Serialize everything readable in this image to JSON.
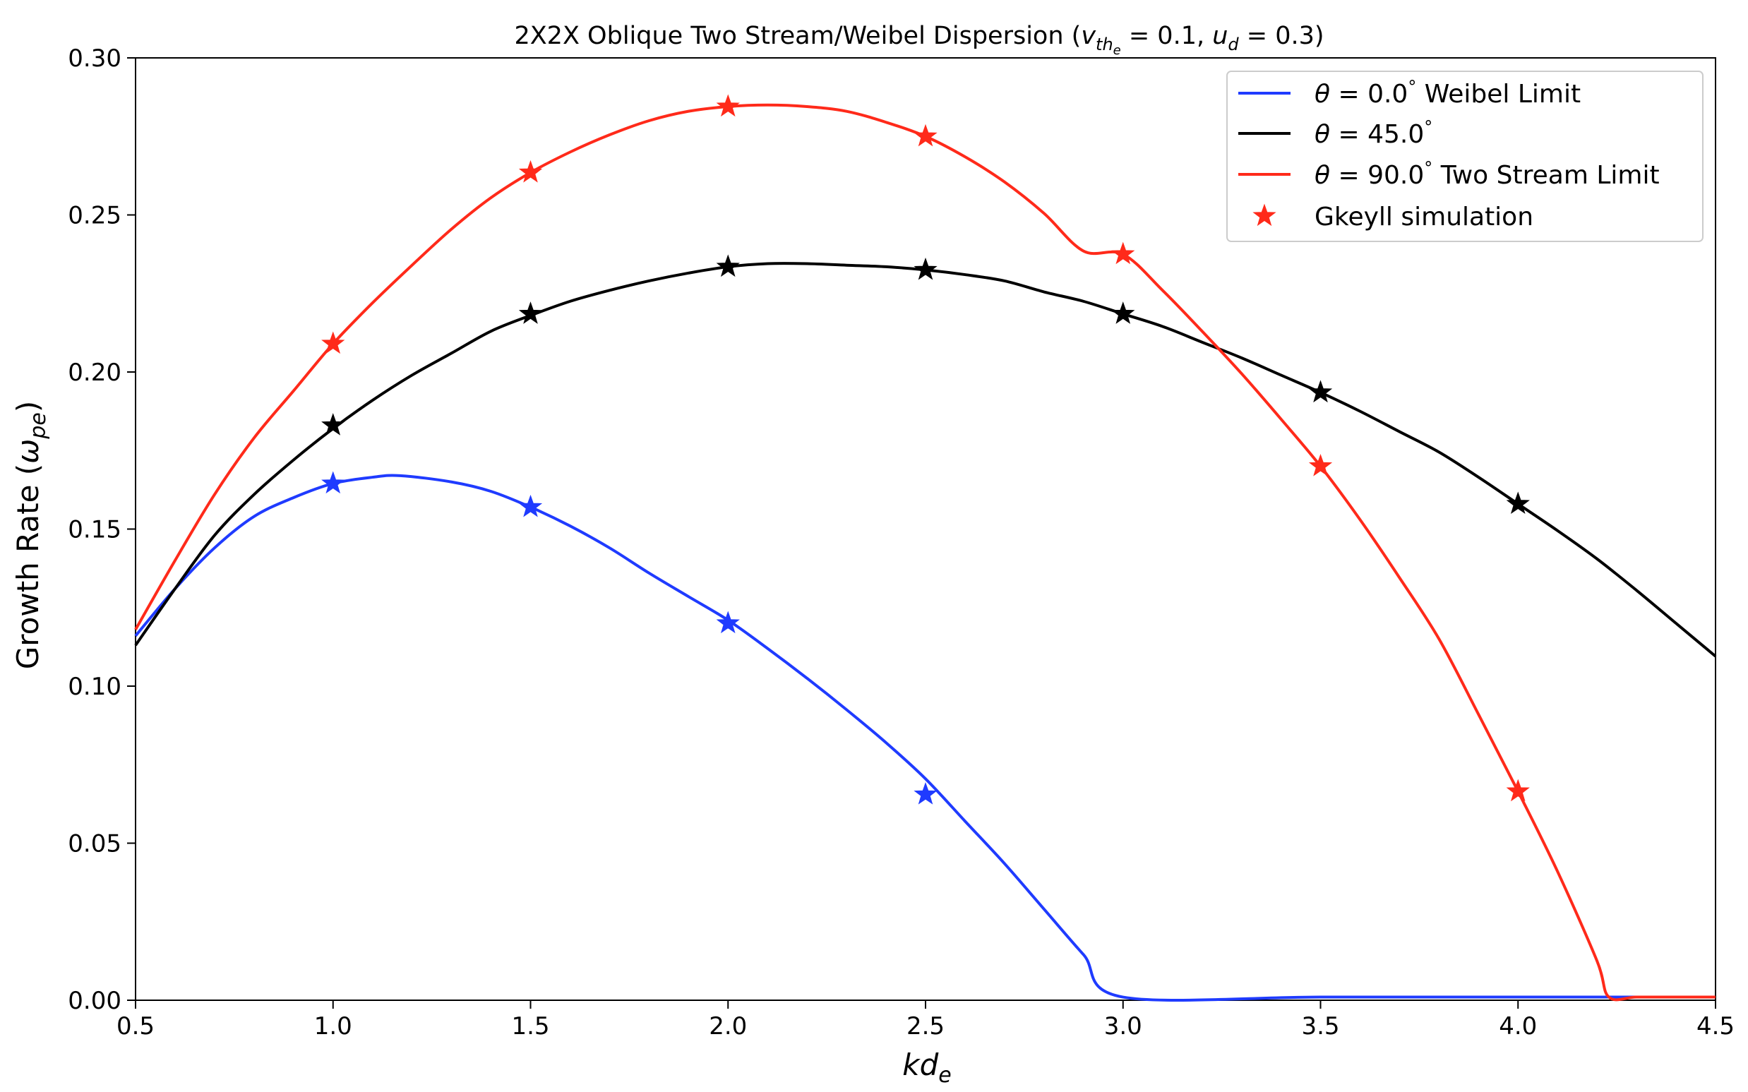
{
  "chart_data": {
    "type": "line",
    "title": "2X2X Oblique Two Stream/Weibel Dispersion (v_{th_e} = 0.1, u_d = 0.3)",
    "title_parts": {
      "prefix": "2X2X Oblique Two Stream/Weibel Dispersion (",
      "v": "v",
      "v_sub": "th",
      "v_subsub": "e",
      "eq1": " = 0.1, ",
      "u": "u",
      "u_sub": "d",
      "eq2": " = 0.3)"
    },
    "xlabel": "kd_e",
    "xlabel_parts": {
      "main": "kd",
      "sub": "e"
    },
    "ylabel": "Growth Rate (ω_pe)",
    "ylabel_parts": {
      "main": "Growth Rate (",
      "omega": "ω",
      "sub": "pe",
      "close": ")"
    },
    "xlim": [
      0.5,
      4.5
    ],
    "ylim": [
      0.0,
      0.3
    ],
    "xticks": [
      0.5,
      1.0,
      1.5,
      2.0,
      2.5,
      3.0,
      3.5,
      4.0,
      4.5
    ],
    "xtick_labels": [
      "0.5",
      "1.0",
      "1.5",
      "2.0",
      "2.5",
      "3.0",
      "3.5",
      "4.0",
      "4.5"
    ],
    "yticks": [
      0.0,
      0.05,
      0.1,
      0.15,
      0.2,
      0.25,
      0.3
    ],
    "ytick_labels": [
      "0.00",
      "0.05",
      "0.10",
      "0.15",
      "0.20",
      "0.25",
      "0.30"
    ],
    "grid": false,
    "legend_position": "top-right",
    "series": [
      {
        "name": "θ = 0.0° Weibel Limit",
        "legend_parts": {
          "theta": "θ",
          "eq": " = 0.0",
          "deg": "°",
          "rest": " Weibel Limit"
        },
        "color": "#1f3bff",
        "curve": {
          "x": [
            0.5,
            0.6,
            0.7,
            0.8,
            0.9,
            1.0,
            1.1,
            1.17,
            1.3,
            1.4,
            1.5,
            1.6,
            1.7,
            1.8,
            1.9,
            2.0,
            2.1,
            2.2,
            2.3,
            2.4,
            2.5,
            2.6,
            2.7,
            2.8,
            2.9,
            3.0,
            3.5,
            4.0,
            4.5
          ],
          "y": [
            0.116,
            0.131,
            0.144,
            0.154,
            0.16,
            0.1645,
            0.1665,
            0.167,
            0.165,
            0.162,
            0.157,
            0.151,
            0.144,
            0.136,
            0.1285,
            0.121,
            0.112,
            0.1025,
            0.0925,
            0.082,
            0.0705,
            0.057,
            0.0435,
            0.029,
            0.0145,
            0.001,
            0.001,
            0.001,
            0.001
          ]
        },
        "sim_points": {
          "x": [
            1.0,
            1.5,
            2.0,
            2.5
          ],
          "y": [
            0.1645,
            0.157,
            0.12,
            0.0655
          ]
        }
      },
      {
        "name": "θ = 45.0°",
        "legend_parts": {
          "theta": "θ",
          "eq": " = 45.0",
          "deg": "°",
          "rest": ""
        },
        "color": "#000000",
        "curve": {
          "x": [
            0.5,
            0.6,
            0.7,
            0.8,
            0.9,
            1.0,
            1.1,
            1.2,
            1.3,
            1.4,
            1.5,
            1.6,
            1.7,
            1.8,
            1.9,
            2.0,
            2.1,
            2.2,
            2.3,
            2.4,
            2.5,
            2.6,
            2.7,
            2.8,
            2.9,
            3.0,
            3.1,
            3.2,
            3.3,
            3.4,
            3.5,
            3.6,
            3.7,
            3.8,
            3.9,
            4.0,
            4.1,
            4.2,
            4.3,
            4.4,
            4.5
          ],
          "y": [
            0.113,
            0.131,
            0.148,
            0.161,
            0.172,
            0.182,
            0.191,
            0.199,
            0.206,
            0.213,
            0.218,
            0.2225,
            0.226,
            0.229,
            0.2315,
            0.2335,
            0.2345,
            0.2345,
            0.234,
            0.2335,
            0.2325,
            0.231,
            0.229,
            0.2255,
            0.2225,
            0.2185,
            0.2145,
            0.2095,
            0.2045,
            0.199,
            0.1935,
            0.1875,
            0.181,
            0.1745,
            0.1665,
            0.158,
            0.1495,
            0.1405,
            0.1305,
            0.12,
            0.1095
          ]
        },
        "sim_points": {
          "x": [
            1.0,
            1.5,
            2.0,
            2.5,
            3.0,
            3.5,
            4.0
          ],
          "y": [
            0.183,
            0.2185,
            0.2335,
            0.2325,
            0.2185,
            0.1935,
            0.158
          ]
        }
      },
      {
        "name": "θ = 90.0° Two Stream Limit",
        "legend_parts": {
          "theta": "θ",
          "eq": " = 90.0",
          "deg": "°",
          "rest": " Two Stream Limit"
        },
        "color": "#ff2a1a",
        "curve": {
          "x": [
            0.5,
            0.6,
            0.7,
            0.8,
            0.9,
            1.0,
            1.1,
            1.2,
            1.3,
            1.4,
            1.5,
            1.6,
            1.7,
            1.8,
            1.9,
            2.0,
            2.1,
            2.2,
            2.3,
            2.4,
            2.5,
            2.6,
            2.7,
            2.8,
            2.9,
            3.0,
            3.1,
            3.2,
            3.3,
            3.4,
            3.5,
            3.6,
            3.7,
            3.8,
            3.9,
            4.0,
            4.1,
            4.2,
            4.23,
            4.3,
            4.4,
            4.5
          ],
          "y": [
            0.118,
            0.14,
            0.161,
            0.179,
            0.194,
            0.209,
            0.222,
            0.234,
            0.2455,
            0.2555,
            0.2635,
            0.27,
            0.2755,
            0.28,
            0.283,
            0.2845,
            0.285,
            0.2845,
            0.283,
            0.2795,
            0.275,
            0.2685,
            0.2605,
            0.2505,
            0.2385,
            0.2375,
            0.226,
            0.213,
            0.1995,
            0.185,
            0.17,
            0.153,
            0.1345,
            0.115,
            0.091,
            0.0665,
            0.041,
            0.0125,
            0.001,
            0.001,
            0.001,
            0.001
          ]
        },
        "sim_points": {
          "x": [
            1.0,
            1.5,
            2.0,
            2.5,
            3.0,
            3.5,
            4.0
          ],
          "y": [
            0.209,
            0.2635,
            0.2845,
            0.275,
            0.2375,
            0.17,
            0.0665
          ]
        }
      }
    ],
    "sim_legend": {
      "name": "Gkeyll simulation",
      "color": "#ff2a1a",
      "marker": "star"
    }
  }
}
